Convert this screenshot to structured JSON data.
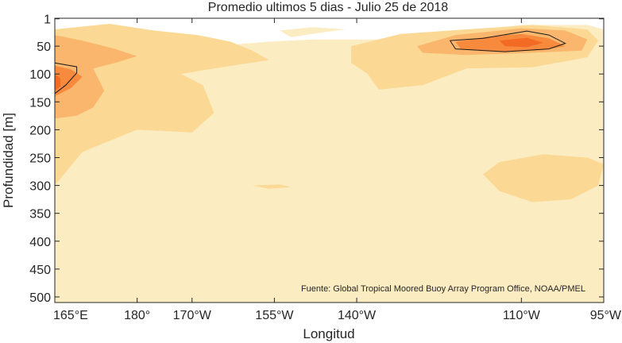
{
  "chart_data": {
    "type": "heatmap",
    "title": "Promedio ultimos 5 dias - Julio 25 de 2018",
    "xlabel": "Longitud",
    "ylabel": "Profundidad [m]",
    "xlim": [
      165,
      265
    ],
    "ylim": [
      510,
      0
    ],
    "x_ticks": [
      {
        "value": 165,
        "label": "165°E"
      },
      {
        "value": 180,
        "label": "180°"
      },
      {
        "value": 190,
        "label": "170°W"
      },
      {
        "value": 205,
        "label": "155°W"
      },
      {
        "value": 220,
        "label": "140°W"
      },
      {
        "value": 250,
        "label": "110°W"
      },
      {
        "value": 265,
        "label": "95°W"
      }
    ],
    "y_ticks": [
      {
        "value": 1,
        "label": "1"
      },
      {
        "value": 50,
        "label": "50"
      },
      {
        "value": 100,
        "label": "100"
      },
      {
        "value": 150,
        "label": "150"
      },
      {
        "value": 200,
        "label": "200"
      },
      {
        "value": 250,
        "label": "250"
      },
      {
        "value": 300,
        "label": "300"
      },
      {
        "value": 350,
        "label": "350"
      },
      {
        "value": 400,
        "label": "400"
      },
      {
        "value": 450,
        "label": "450"
      },
      {
        "value": 500,
        "label": "500"
      }
    ],
    "annotation": "Fuente: Global Tropical Moored Buoy Array Program Office, NOAA/PMEL",
    "levels": [
      {
        "color": "#ffffff",
        "polygons": [
          [
            [
              165,
              510
            ],
            [
              167,
              510
            ],
            [
              170,
              470
            ],
            [
              178,
              400
            ],
            [
              186,
              430
            ],
            [
              196,
              500
            ],
            [
              198,
              510
            ],
            [
              210,
              510
            ],
            [
              220,
              470
            ],
            [
              225,
              430
            ],
            [
              230,
              470
            ],
            [
              234,
              510
            ],
            [
              265,
              510
            ],
            [
              262,
              480
            ],
            [
              260,
              430
            ],
            [
              256,
              380
            ],
            [
              250,
              350
            ],
            [
              244,
              360
            ],
            [
              238,
              410
            ],
            [
              230,
              370
            ],
            [
              220,
              330
            ],
            [
              210,
              350
            ],
            [
              200,
              400
            ],
            [
              190,
              350
            ],
            [
              180,
              330
            ],
            [
              172,
              320
            ],
            [
              168,
              360
            ],
            [
              165,
              380
            ]
          ],
          [
            [
              188,
              121
            ],
            [
              198,
              112
            ],
            [
              212,
              110
            ],
            [
              226,
              116
            ],
            [
              234,
              122
            ],
            [
              246,
              127
            ],
            [
              234,
              136
            ],
            [
              220,
              150
            ],
            [
              210,
              154
            ],
            [
              200,
              144
            ],
            [
              190,
              135
            ]
          ],
          [
            [
              260,
              117
            ],
            [
              265,
              110
            ],
            [
              265,
              133
            ],
            [
              261,
              126
            ]
          ],
          [
            [
              219,
              5
            ],
            [
              230,
              3
            ],
            [
              243,
              1
            ],
            [
              254,
              3
            ],
            [
              262,
              5
            ],
            [
              258,
              6
            ],
            [
              244,
              8
            ],
            [
              230,
              8
            ]
          ]
        ]
      },
      {
        "color": "#d6ecf5",
        "polygons": [
          [
            [
              195,
              120
            ],
            [
              210,
              118
            ],
            [
              221,
              123
            ],
            [
              210,
              128
            ],
            [
              198,
              127
            ]
          ],
          [
            [
              263,
              118
            ],
            [
              265,
              116
            ],
            [
              265,
              124
            ],
            [
              263,
              123
            ]
          ]
        ]
      },
      {
        "color": "#fcecc2",
        "polygons": [
          [
            [
              165,
              80
            ],
            [
              176,
              65
            ],
            [
              184,
              55
            ],
            [
              194,
              50
            ],
            [
              204,
              42
            ],
            [
              212,
              38
            ],
            [
              226,
              38
            ],
            [
              232,
              45
            ],
            [
              238,
              28
            ],
            [
              244,
              20
            ],
            [
              250,
              12
            ],
            [
              262,
              12
            ],
            [
              265,
              20
            ],
            [
              265,
              510
            ],
            [
              165,
              510
            ]
          ],
          [
            [
              208,
              34
            ],
            [
              214,
              25
            ],
            [
              218,
              20
            ],
            [
              212,
              16
            ],
            [
              206,
              22
            ]
          ]
        ]
      },
      {
        "color": "#fbd995",
        "polygons": [
          [
            [
              165,
              20
            ],
            [
              175,
              10
            ],
            [
              183,
              22
            ],
            [
              191,
              30
            ],
            [
              197,
              42
            ],
            [
              201,
              58
            ],
            [
              204,
              75
            ],
            [
              194,
              90
            ],
            [
              188,
              100
            ],
            [
              192,
              120
            ],
            [
              194,
              170
            ],
            [
              190,
              205
            ],
            [
              180,
              200
            ],
            [
              175,
              220
            ],
            [
              170,
              240
            ],
            [
              165,
              300
            ]
          ],
          [
            [
              219,
              50
            ],
            [
              228,
              28
            ],
            [
              240,
              20
            ],
            [
              252,
              12
            ],
            [
              262,
              20
            ],
            [
              264,
              40
            ],
            [
              262,
              70
            ],
            [
              252,
              88
            ],
            [
              240,
              90
            ],
            [
              232,
              120
            ],
            [
              224,
              128
            ],
            [
              222,
              100
            ],
            [
              219,
              80
            ]
          ],
          [
            [
              243,
              280
            ],
            [
              246,
              258
            ],
            [
              254,
              244
            ],
            [
              262,
              250
            ],
            [
              265,
              262
            ],
            [
              264,
              300
            ],
            [
              259,
              325
            ],
            [
              252,
              330
            ],
            [
              246,
              310
            ]
          ],
          [
            [
              201,
              300
            ],
            [
              206,
              298
            ],
            [
              208,
              303
            ],
            [
              204,
              306
            ]
          ]
        ]
      },
      {
        "color": "#fab66d",
        "polygons": [
          [
            [
              165,
              30
            ],
            [
              170,
              40
            ],
            [
              176,
              55
            ],
            [
              180,
              68
            ],
            [
              176,
              80
            ],
            [
              172,
              90
            ],
            [
              173,
              110
            ],
            [
              174,
              130
            ],
            [
              172,
              160
            ],
            [
              169,
              175
            ],
            [
              165,
              180
            ]
          ],
          [
            [
              231,
              50
            ],
            [
              238,
              30
            ],
            [
              250,
              18
            ],
            [
              258,
              22
            ],
            [
              262,
              38
            ],
            [
              261,
              58
            ],
            [
              252,
              62
            ],
            [
              240,
              66
            ],
            [
              232,
              62
            ]
          ]
        ]
      },
      {
        "color": "#f88a3e",
        "polygons": [
          [
            [
              165,
              85
            ],
            [
              168,
              92
            ],
            [
              170,
              105
            ],
            [
              168,
              125
            ],
            [
              165,
              140
            ]
          ],
          [
            [
              238,
              42
            ],
            [
              244,
              33
            ],
            [
              250,
              28
            ],
            [
              255,
              36
            ],
            [
              258,
              50
            ],
            [
              254,
              57
            ],
            [
              246,
              60
            ],
            [
              239,
              56
            ]
          ]
        ]
      },
      {
        "color": "#f26a24",
        "polygons": [
          [
            [
              165,
              100
            ],
            [
              166,
              108
            ],
            [
              166,
              122
            ],
            [
              165,
              130
            ]
          ],
          [
            [
              246,
              40
            ],
            [
              251,
              35
            ],
            [
              254,
              44
            ],
            [
              251,
              52
            ],
            [
              247,
              50
            ]
          ]
        ]
      }
    ],
    "contours": [
      [
        [
          165,
          80
        ],
        [
          169,
          87
        ],
        [
          169,
          98
        ],
        [
          167,
          120
        ],
        [
          165,
          135
        ]
      ],
      [
        [
          237,
          40
        ],
        [
          243,
          36
        ],
        [
          251,
          23
        ],
        [
          255,
          30
        ],
        [
          258,
          45
        ],
        [
          255,
          55
        ],
        [
          247,
          60
        ],
        [
          238,
          55
        ],
        [
          237,
          40
        ]
      ]
    ]
  }
}
